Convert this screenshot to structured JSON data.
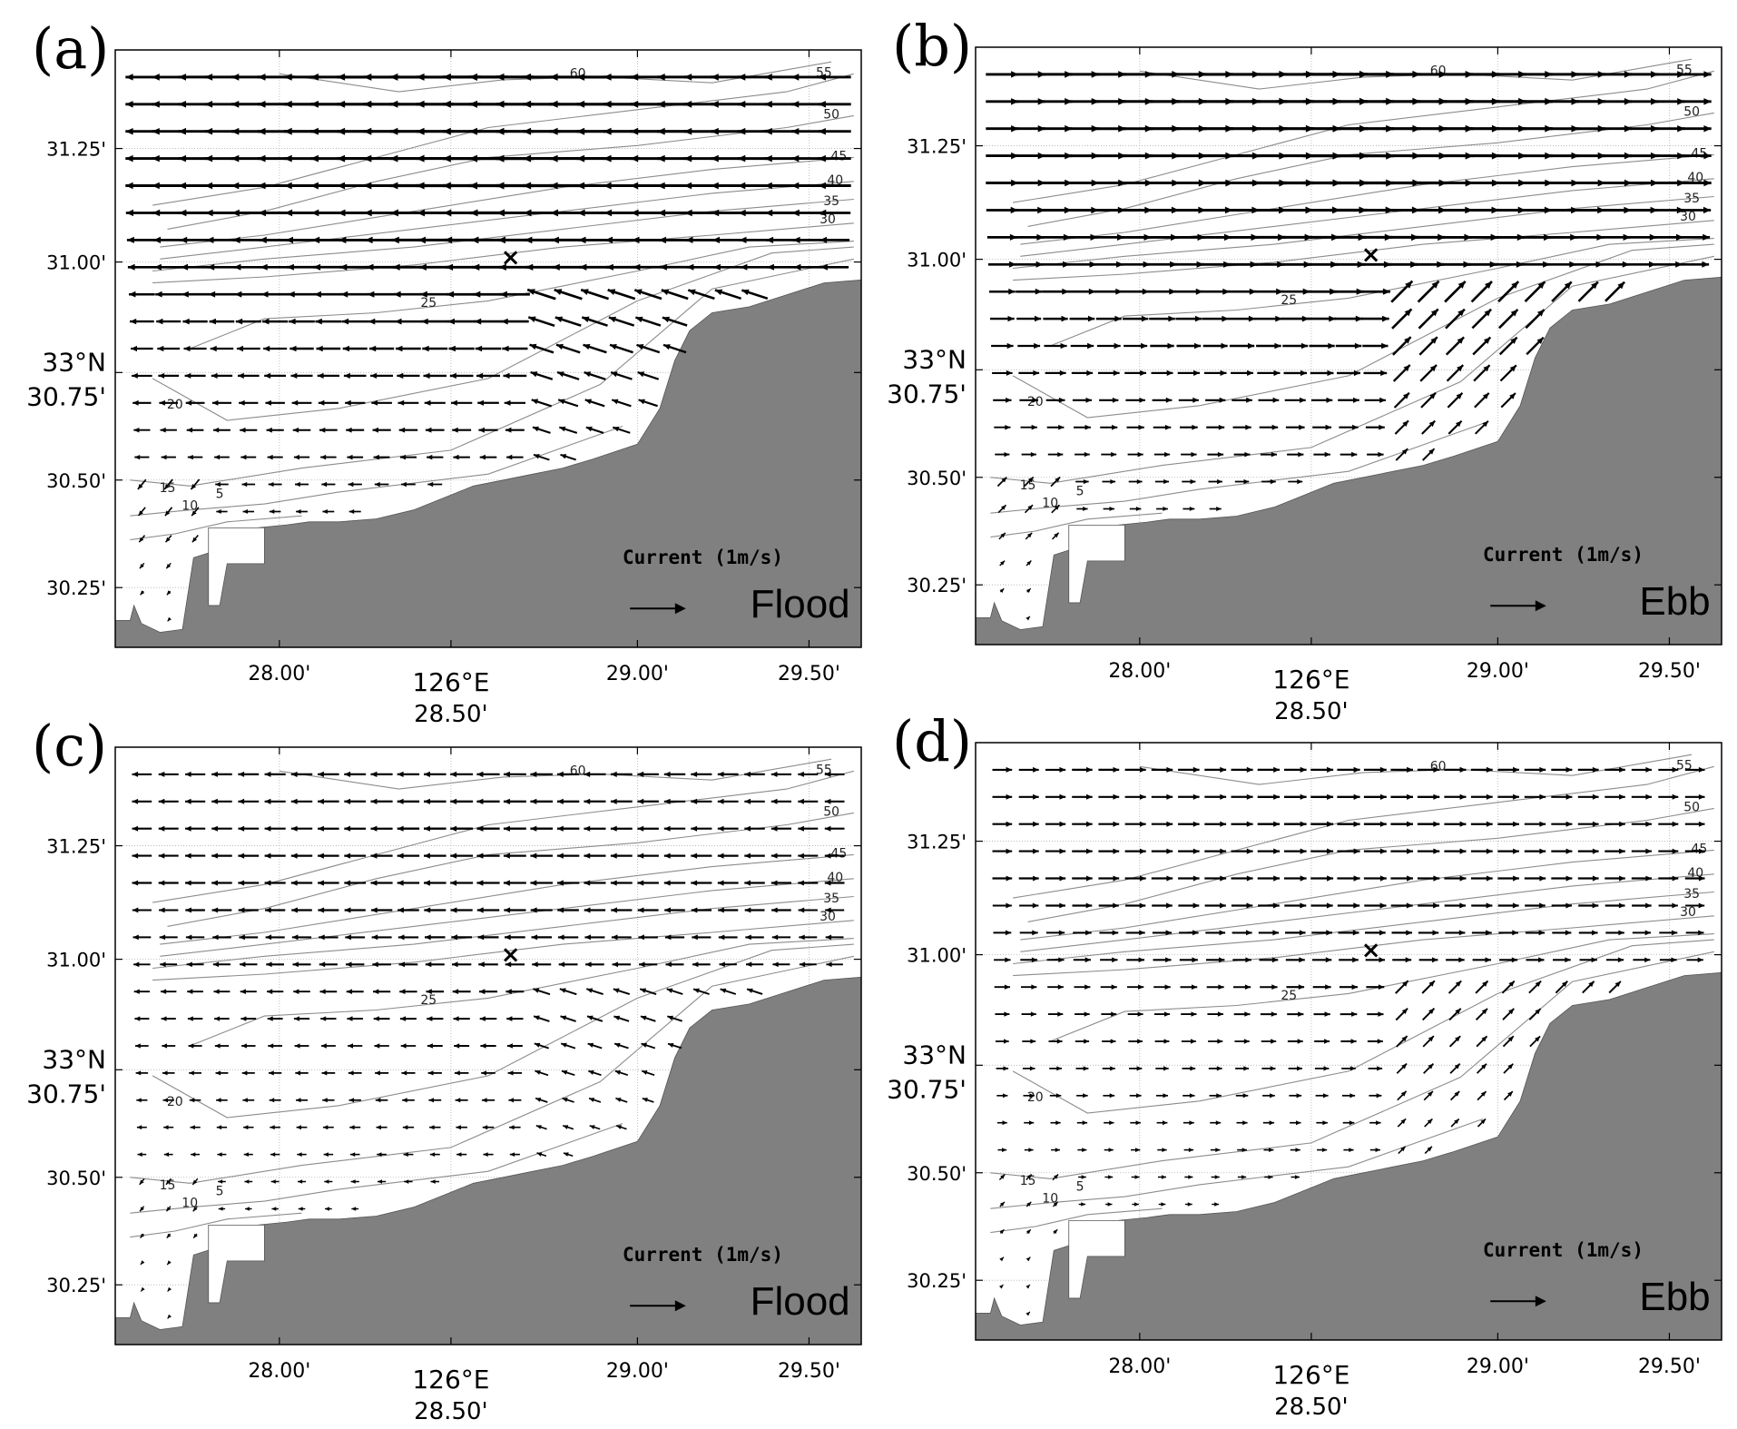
{
  "figure": {
    "panels": [
      {
        "id": "a",
        "label": "(a)",
        "phase_label": "Flood",
        "legend_label": "Current (1m/s)",
        "direction": -1,
        "arrow_scale": 1.0
      },
      {
        "id": "b",
        "label": "(b)",
        "phase_label": "Ebb",
        "legend_label": "Current (1m/s)",
        "direction": 1,
        "arrow_scale": 1.0
      },
      {
        "id": "c",
        "label": "(c)",
        "phase_label": "Flood",
        "legend_label": "Current (1m/s)",
        "direction": -1,
        "arrow_scale": 0.6
      },
      {
        "id": "d",
        "label": "(d)",
        "phase_label": "Ebb",
        "legend_label": "Current (1m/s)",
        "direction": 1,
        "arrow_scale": 0.6
      }
    ],
    "axes": {
      "x_ticks": [
        "28.00'",
        "28.50'",
        "29.00'",
        "29.50'"
      ],
      "x_title": "126°E",
      "y_ticks": [
        "30.25'",
        "30.50'",
        "30.75'",
        "31.00'",
        "31.25'"
      ],
      "y_title": "33°N"
    },
    "contour_labels": [
      "60",
      "55",
      "50",
      "45",
      "40",
      "35",
      "30",
      "25",
      "20",
      "15",
      "10",
      "5"
    ],
    "station_marker": "×",
    "colors": {
      "land": "#808080",
      "contour": "#8c8c8c",
      "arrow": "#000000",
      "grid": "#b0b0b0"
    }
  }
}
